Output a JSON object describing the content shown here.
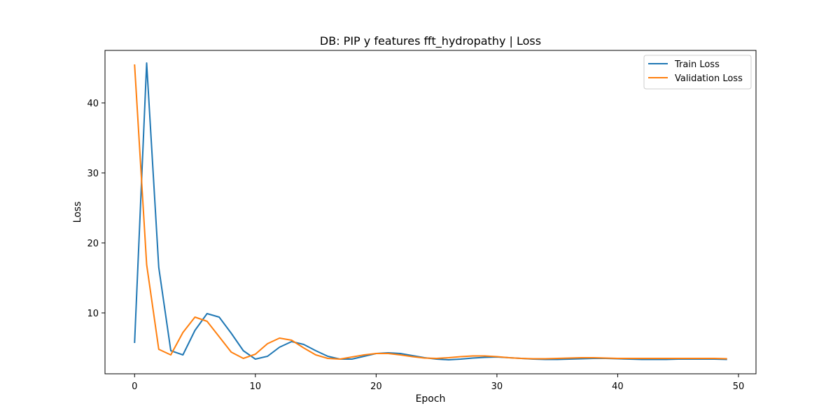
{
  "chart_data": {
    "type": "line",
    "title": "DB: PIP y features fft_hydropathy | Loss",
    "xlabel": "Epoch",
    "ylabel": "Loss",
    "xlim": [
      -2.45,
      51.45
    ],
    "ylim": [
      1.3,
      47.5
    ],
    "xticks": [
      0,
      10,
      20,
      30,
      40,
      50
    ],
    "yticks": [
      10,
      20,
      30,
      40
    ],
    "grid": false,
    "legend_position": "top-right",
    "x": [
      0,
      1,
      2,
      3,
      4,
      5,
      6,
      7,
      8,
      9,
      10,
      11,
      12,
      13,
      14,
      15,
      16,
      17,
      18,
      19,
      20,
      21,
      22,
      23,
      24,
      25,
      26,
      27,
      28,
      29,
      30,
      31,
      32,
      33,
      34,
      35,
      36,
      37,
      38,
      39,
      40,
      41,
      42,
      43,
      44,
      45,
      46,
      47,
      48,
      49
    ],
    "series": [
      {
        "name": "Train Loss",
        "color": "#1f77b4",
        "values": [
          5.8,
          45.7,
          16.5,
          4.6,
          4.0,
          7.5,
          9.9,
          9.4,
          7.1,
          4.6,
          3.4,
          3.8,
          5.1,
          5.9,
          5.5,
          4.6,
          3.8,
          3.4,
          3.4,
          3.8,
          4.2,
          4.3,
          4.2,
          3.9,
          3.6,
          3.4,
          3.3,
          3.4,
          3.55,
          3.65,
          3.7,
          3.6,
          3.5,
          3.4,
          3.35,
          3.35,
          3.4,
          3.45,
          3.5,
          3.5,
          3.45,
          3.4,
          3.35,
          3.35,
          3.35,
          3.4,
          3.4,
          3.4,
          3.4,
          3.35
        ]
      },
      {
        "name": "Validation Loss",
        "color": "#ff7f0e",
        "values": [
          45.4,
          16.9,
          4.8,
          4.0,
          7.2,
          9.4,
          8.8,
          6.6,
          4.4,
          3.5,
          4.1,
          5.6,
          6.4,
          6.1,
          5.0,
          4.0,
          3.5,
          3.4,
          3.7,
          4.0,
          4.2,
          4.2,
          4.0,
          3.75,
          3.55,
          3.5,
          3.6,
          3.75,
          3.85,
          3.85,
          3.75,
          3.6,
          3.5,
          3.45,
          3.45,
          3.5,
          3.55,
          3.6,
          3.6,
          3.55,
          3.5,
          3.5,
          3.5,
          3.5,
          3.5,
          3.5,
          3.5,
          3.5,
          3.5,
          3.45
        ]
      }
    ]
  }
}
